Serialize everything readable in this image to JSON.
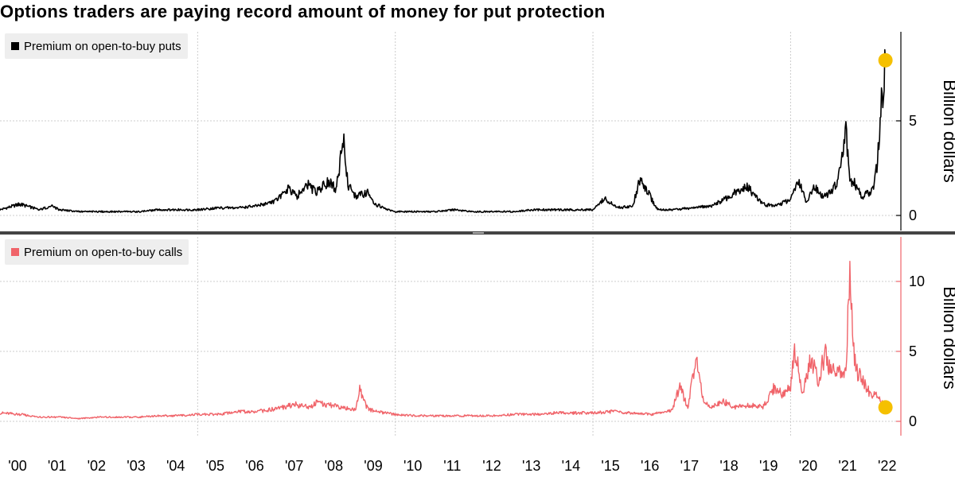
{
  "title": "Options traders are paying record amount of money for put protection",
  "panels": [
    {
      "legend": "Premium on open-to-buy puts",
      "color": "#000000",
      "ylabel": "Billion dollars",
      "yticks": [
        "0",
        "5"
      ]
    },
    {
      "legend": "Premium on open-to-buy calls",
      "color": "#f0646a",
      "ylabel": "Billion dollars",
      "yticks": [
        "0",
        "5",
        "10"
      ]
    }
  ],
  "marker_color": "#f5c000",
  "x_tick_labels": [
    "'00",
    "'01",
    "'02",
    "'03",
    "'04",
    "'05",
    "'06",
    "'07",
    "'08",
    "'09",
    "'10",
    "'11",
    "'12",
    "'13",
    "'14",
    "'15",
    "'16",
    "'17",
    "'18",
    "'19",
    "'20",
    "'21",
    "'22"
  ],
  "chart_data": [
    {
      "type": "line",
      "title": "Options traders are paying record amount of money for put protection",
      "ylabel": "Billion dollars",
      "ylim": [
        -0.6,
        9.6
      ],
      "series": [
        {
          "name": "Premium on open-to-buy puts",
          "x": [
            2000.0,
            2000.5,
            2001.0,
            2001.3,
            2001.5,
            2002.0,
            2002.5,
            2003.0,
            2003.5,
            2004.0,
            2004.5,
            2005.0,
            2005.5,
            2006.0,
            2006.5,
            2007.0,
            2007.3,
            2007.5,
            2007.8,
            2008.0,
            2008.3,
            2008.5,
            2008.6,
            2008.7,
            2008.8,
            2009.0,
            2009.3,
            2009.5,
            2009.8,
            2010.0,
            2010.5,
            2011.0,
            2011.5,
            2012.0,
            2012.5,
            2013.0,
            2013.5,
            2014.0,
            2014.5,
            2015.0,
            2015.3,
            2015.6,
            2016.0,
            2016.2,
            2016.6,
            2016.7,
            2017.0,
            2017.5,
            2018.0,
            2018.3,
            2018.6,
            2018.9,
            2019.3,
            2019.6,
            2020.0,
            2020.2,
            2020.4,
            2020.6,
            2020.8,
            2021.0,
            2021.2,
            2021.4,
            2021.5,
            2021.6,
            2021.8,
            2022.0,
            2022.1,
            2022.2,
            2022.3,
            2022.4
          ],
          "values": [
            0.3,
            0.6,
            0.3,
            0.5,
            0.3,
            0.2,
            0.2,
            0.2,
            0.2,
            0.3,
            0.3,
            0.3,
            0.4,
            0.4,
            0.5,
            0.8,
            1.4,
            1.0,
            1.6,
            1.2,
            1.8,
            1.4,
            2.8,
            3.8,
            1.6,
            1.0,
            1.2,
            0.6,
            0.3,
            0.2,
            0.2,
            0.2,
            0.3,
            0.2,
            0.2,
            0.2,
            0.3,
            0.3,
            0.3,
            0.3,
            0.9,
            0.4,
            0.5,
            2.0,
            0.4,
            0.3,
            0.3,
            0.4,
            0.5,
            0.8,
            1.2,
            1.5,
            0.6,
            0.5,
            0.8,
            1.8,
            0.7,
            1.5,
            1.0,
            1.2,
            1.8,
            4.5,
            1.6,
            1.8,
            1.0,
            1.2,
            1.5,
            2.8,
            6.0,
            8.2
          ]
        }
      ],
      "annotations": [
        {
          "x": 2022.4,
          "value": 8.2,
          "marker": "circle"
        }
      ]
    },
    {
      "type": "line",
      "ylabel": "Billion dollars",
      "ylim": [
        -1.3,
        13
      ],
      "series": [
        {
          "name": "Premium on open-to-buy calls",
          "x": [
            2000.0,
            2000.5,
            2001.0,
            2001.5,
            2002.0,
            2002.5,
            2003.0,
            2003.5,
            2004.0,
            2004.5,
            2005.0,
            2005.5,
            2006.0,
            2006.5,
            2007.0,
            2007.3,
            2007.5,
            2007.8,
            2008.0,
            2008.3,
            2008.5,
            2008.8,
            2009.0,
            2009.1,
            2009.3,
            2009.5,
            2010.0,
            2010.5,
            2011.0,
            2011.5,
            2012.0,
            2012.5,
            2013.0,
            2013.5,
            2014.0,
            2014.5,
            2015.0,
            2015.5,
            2016.0,
            2016.5,
            2017.0,
            2017.2,
            2017.4,
            2017.6,
            2017.8,
            2018.0,
            2018.3,
            2018.6,
            2019.0,
            2019.3,
            2019.6,
            2019.8,
            2020.0,
            2020.1,
            2020.3,
            2020.5,
            2020.7,
            2020.9,
            2021.0,
            2021.2,
            2021.3,
            2021.4,
            2021.5,
            2021.6,
            2021.7,
            2021.8,
            2022.0,
            2022.2,
            2022.4
          ],
          "values": [
            0.6,
            0.5,
            0.3,
            0.3,
            0.2,
            0.3,
            0.3,
            0.3,
            0.4,
            0.4,
            0.5,
            0.5,
            0.7,
            0.7,
            0.9,
            1.1,
            1.2,
            1.0,
            1.3,
            1.2,
            1.1,
            0.9,
            0.8,
            2.2,
            0.9,
            0.7,
            0.5,
            0.4,
            0.4,
            0.4,
            0.4,
            0.4,
            0.5,
            0.5,
            0.6,
            0.6,
            0.6,
            0.7,
            0.6,
            0.5,
            0.8,
            2.5,
            1.0,
            4.5,
            1.3,
            1.0,
            1.4,
            1.0,
            1.2,
            1.0,
            2.5,
            1.8,
            2.5,
            5.3,
            2.0,
            4.5,
            3.0,
            5.1,
            3.5,
            4.0,
            3.0,
            3.5,
            10.8,
            5.0,
            3.5,
            3.0,
            2.0,
            1.8,
            1.0
          ]
        }
      ],
      "annotations": [
        {
          "x": 2022.4,
          "value": 1.0,
          "marker": "circle"
        }
      ]
    }
  ]
}
